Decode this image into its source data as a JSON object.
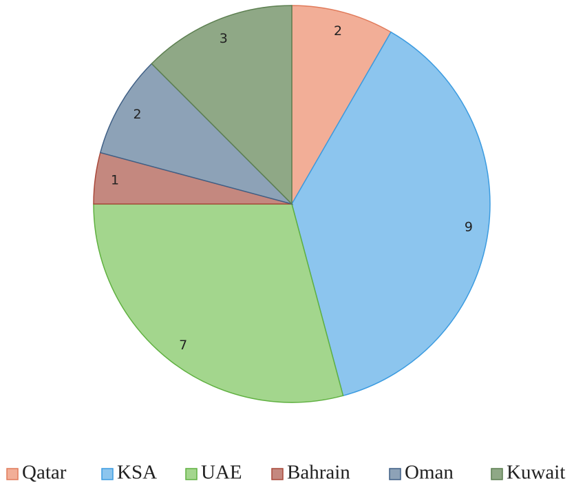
{
  "chart_data": {
    "type": "pie",
    "categories": [
      "Qatar",
      "KSA",
      "UAE",
      "Bahrain",
      "Oman",
      "Kuwait"
    ],
    "values": [
      2,
      9,
      7,
      1,
      2,
      3
    ],
    "colors": [
      "#f2ae97",
      "#8cc5ee",
      "#a3d68d",
      "#c4887f",
      "#8da2b7",
      "#8fa886"
    ],
    "stroke_colors": [
      "#e07a5a",
      "#3b9be0",
      "#5fb040",
      "#a9483a",
      "#3f5f85",
      "#5c7f50"
    ],
    "legend": "bottom"
  }
}
